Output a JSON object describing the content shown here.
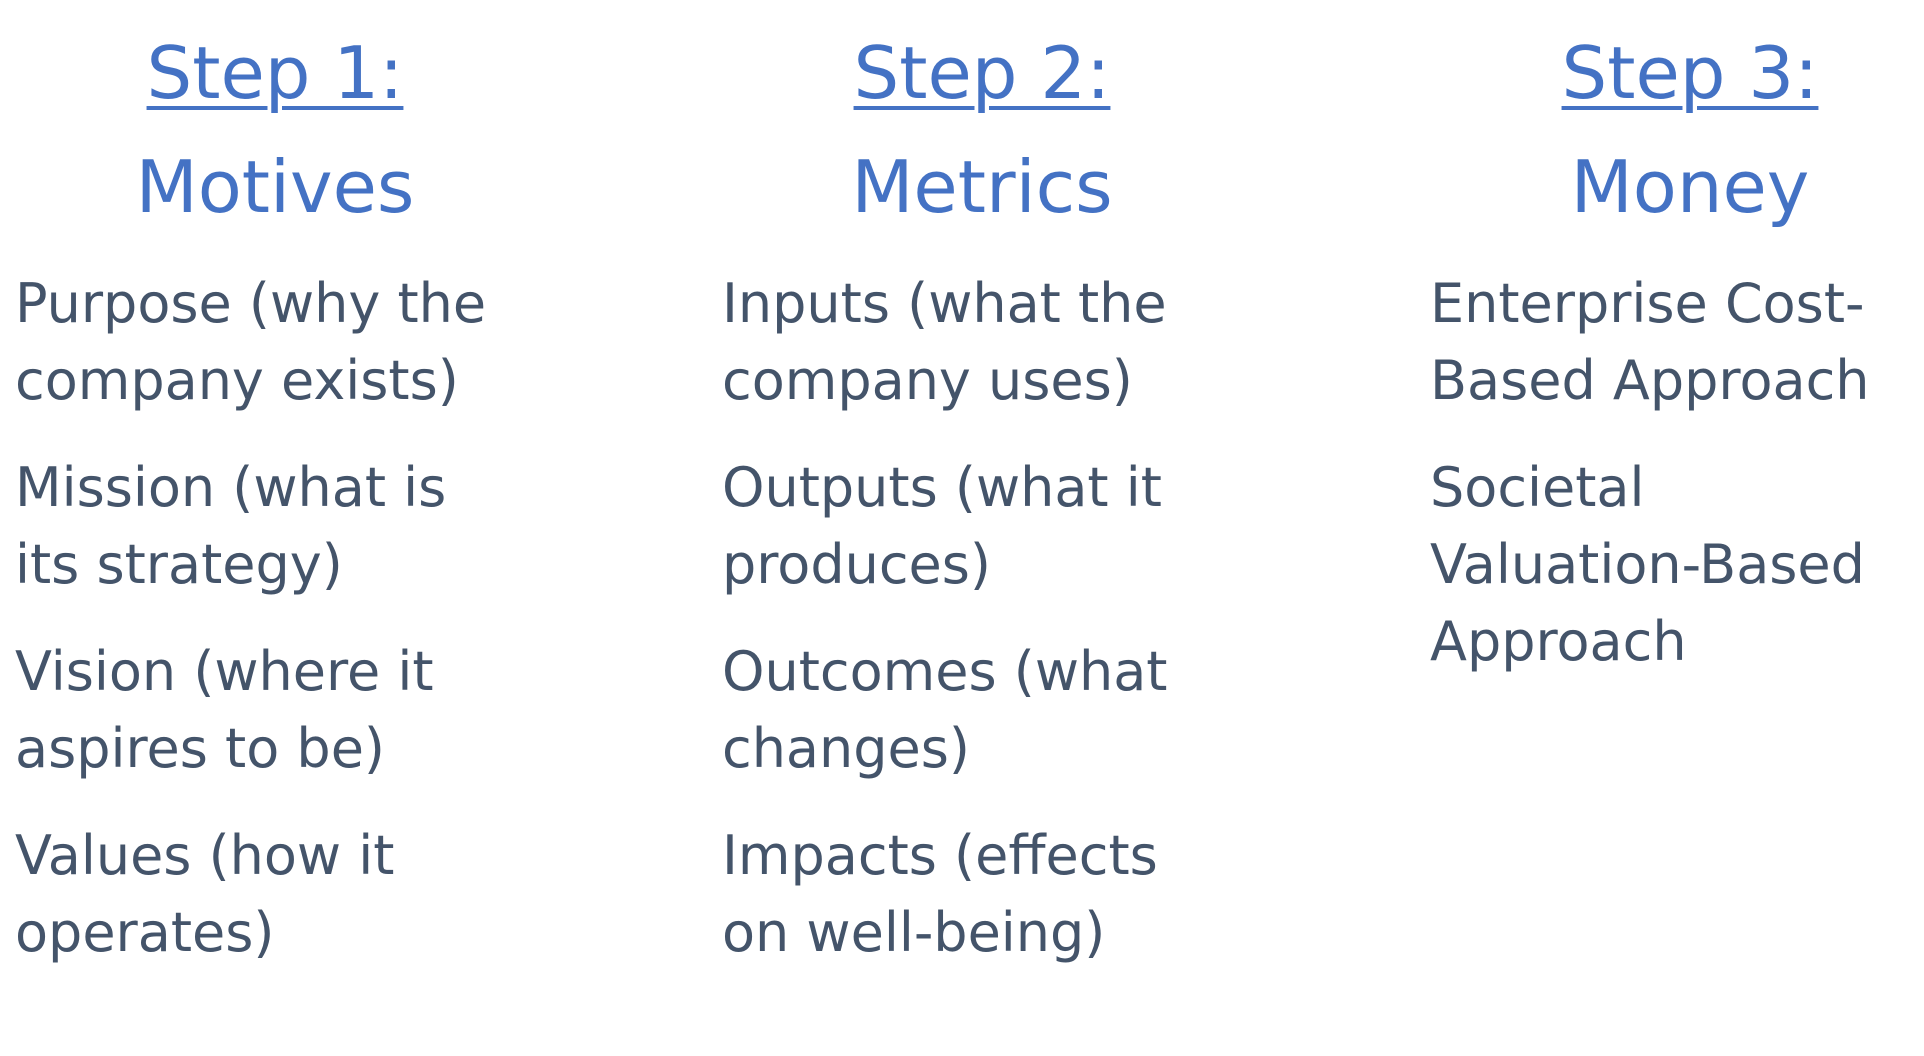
{
  "columns": [
    {
      "step": "Step 1:",
      "title": "Motives",
      "items": [
        [
          "Purpose (why the",
          "company exists)"
        ],
        [
          "Mission (what is",
          "its strategy)"
        ],
        [
          "Vision (where it",
          "aspires to be)"
        ],
        [
          "Values (how it",
          "operates)"
        ]
      ]
    },
    {
      "step": "Step 2:",
      "title": "Metrics",
      "items": [
        [
          "Inputs (what the",
          "company uses)"
        ],
        [
          "Outputs (what it",
          "produces)"
        ],
        [
          "Outcomes (what",
          "changes)"
        ],
        [
          "Impacts (effects",
          "on well-being)"
        ]
      ]
    },
    {
      "step": "Step 3:",
      "title": "Money",
      "items": [
        [
          "Enterprise Cost-",
          "Based Approach"
        ],
        [
          "Societal",
          "Valuation-Based",
          "Approach"
        ]
      ]
    }
  ],
  "colors": {
    "heading": "#4472c4",
    "body_text": "#44546a",
    "background": "#ffffff"
  }
}
